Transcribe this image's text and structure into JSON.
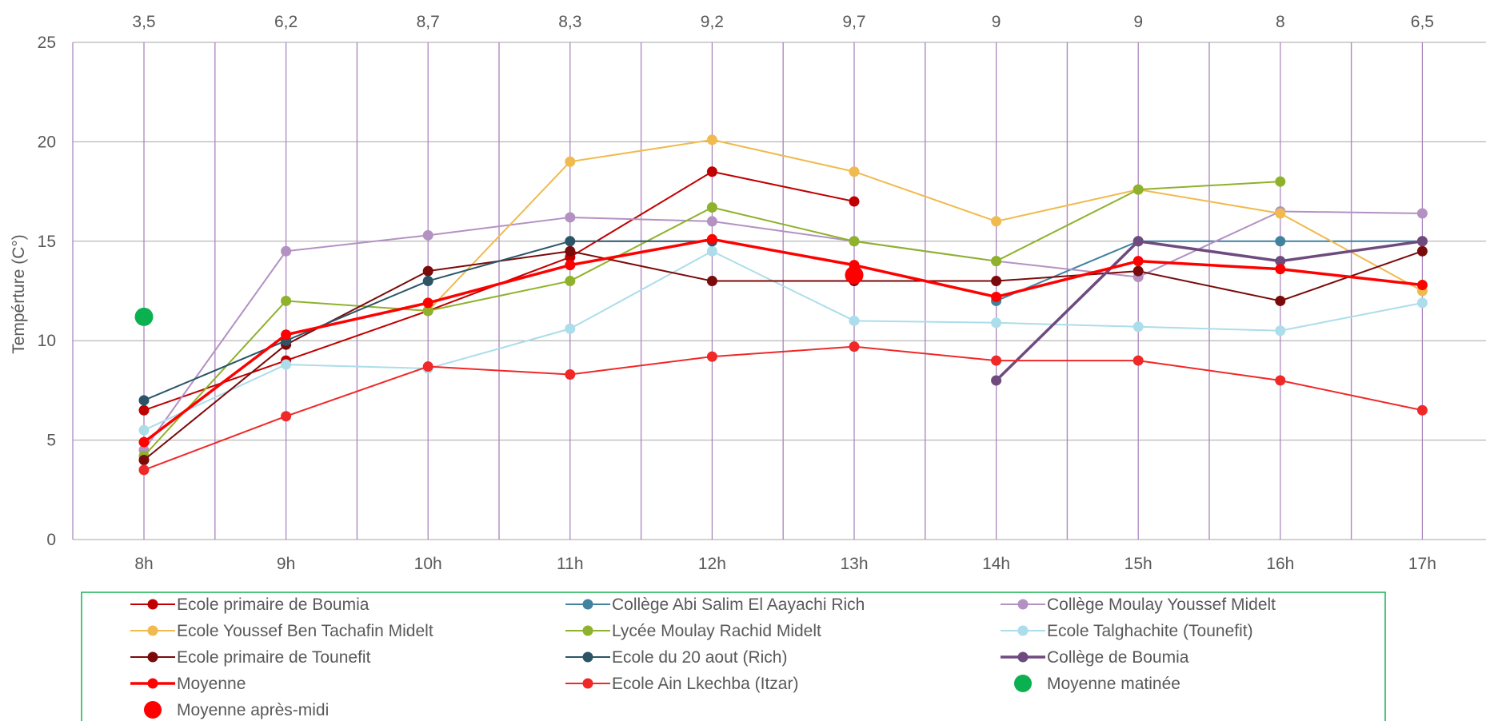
{
  "chart_data": {
    "type": "line",
    "title": "",
    "xlabel": "",
    "ylabel": "Tempérture (C°)",
    "ylim": [
      0,
      25
    ],
    "yticks": [
      "0",
      "5",
      "10",
      "15",
      "20",
      "25"
    ],
    "categories": [
      "8h",
      "9h",
      "10h",
      "11h",
      "12h",
      "13h",
      "14h",
      "15h",
      "16h",
      "17h"
    ],
    "secondary_x_labels": [
      "3,5",
      "6,2",
      "8,7",
      "8,3",
      "9,2",
      "9,7",
      "9",
      "9",
      "8",
      "6,5"
    ],
    "grid": true,
    "legend_position": "bottom",
    "series": [
      {
        "name": "Ecole primaire de Boumia",
        "color": "#C00000",
        "width": 2,
        "marker": 6.5,
        "values": [
          6.5,
          9,
          11.5,
          14.2,
          18.5,
          17,
          null,
          null,
          null,
          null
        ]
      },
      {
        "name": "Collège Abi Salim El Aayachi Rich",
        "color": "#41829E",
        "width": 2,
        "marker": 6.5,
        "values": [
          null,
          null,
          null,
          null,
          null,
          null,
          12,
          15,
          15,
          15
        ]
      },
      {
        "name": "Collège Moulay Youssef Midelt",
        "color": "#B391C3",
        "width": 2,
        "marker": 6.5,
        "values": [
          4.5,
          14.5,
          15.3,
          16.2,
          16,
          15,
          14,
          13.2,
          16.5,
          16.4
        ]
      },
      {
        "name": "Ecole Youssef Ben Tachafin Midelt",
        "color": "#F0BA4E",
        "width": 2,
        "marker": 6.5,
        "values": [
          null,
          null,
          11.5,
          19,
          20.1,
          18.5,
          16,
          17.6,
          16.4,
          12.5
        ]
      },
      {
        "name": "Lycée Moulay Rachid Midelt",
        "color": "#8EB22B",
        "width": 2,
        "marker": 6.5,
        "values": [
          4.2,
          12,
          11.5,
          13,
          16.7,
          15,
          14,
          17.6,
          18,
          null
        ]
      },
      {
        "name": "Ecole Talghachite (Tounefit)",
        "color": "#ABDDEA",
        "width": 2,
        "marker": 6.5,
        "values": [
          5.5,
          8.8,
          8.6,
          10.6,
          14.5,
          11,
          10.9,
          10.7,
          10.5,
          11.9
        ]
      },
      {
        "name": "Ecole primaire de Tounefit",
        "color": "#7B0A0A",
        "width": 2,
        "marker": 6.5,
        "values": [
          4,
          9.8,
          13.5,
          14.5,
          13,
          13,
          13,
          13.5,
          12,
          14.5
        ]
      },
      {
        "name": "Ecole du 20 aout  (Rich)",
        "color": "#2B5567",
        "width": 2,
        "marker": 6.5,
        "values": [
          7,
          10,
          13,
          15,
          15,
          null,
          null,
          null,
          null,
          null
        ]
      },
      {
        "name": "Collège de Boumia",
        "color": "#6E4A7E",
        "width": 3.5,
        "marker": 6.5,
        "values": [
          null,
          null,
          null,
          null,
          null,
          null,
          8,
          15,
          14,
          15
        ]
      },
      {
        "name": "Moyenne",
        "color": "#FF0000",
        "width": 3.5,
        "marker": 6.5,
        "values": [
          4.9,
          10.3,
          11.9,
          13.8,
          15.1,
          13.8,
          12.2,
          14,
          13.6,
          12.8
        ]
      },
      {
        "name": "Ecole Ain Lkechba (Itzar)",
        "color": "#F02828",
        "width": 2,
        "marker": 6.5,
        "values": [
          3.5,
          6.2,
          8.7,
          8.3,
          9.2,
          9.7,
          9,
          9,
          8,
          6.5
        ]
      }
    ],
    "points": [
      {
        "name": "Moyenne matinée",
        "color": "#0BB150",
        "category": "8h",
        "value": 11.2
      },
      {
        "name": "Moyenne après-midi",
        "color": "#FF0000",
        "category": "13h",
        "value": 13.3
      }
    ],
    "legend": [
      {
        "label": "Ecole primaire de Boumia",
        "kind": "line",
        "color": "#C00000",
        "width": 2
      },
      {
        "label": "Collège Abi Salim El Aayachi Rich",
        "kind": "line",
        "color": "#41829E",
        "width": 2
      },
      {
        "label": "Collège Moulay Youssef Midelt",
        "kind": "line",
        "color": "#B391C3",
        "width": 2
      },
      {
        "label": "Ecole Youssef Ben Tachafin Midelt",
        "kind": "line",
        "color": "#F0BA4E",
        "width": 2
      },
      {
        "label": "Lycée Moulay Rachid Midelt",
        "kind": "line",
        "color": "#8EB22B",
        "width": 2
      },
      {
        "label": "Ecole Talghachite (Tounefit)",
        "kind": "line",
        "color": "#ABDDEA",
        "width": 2
      },
      {
        "label": "Ecole primaire de Tounefit",
        "kind": "line",
        "color": "#7B0A0A",
        "width": 2
      },
      {
        "label": "Ecole du 20 aout  (Rich)",
        "kind": "line",
        "color": "#2B5567",
        "width": 2
      },
      {
        "label": "Collège de Boumia",
        "kind": "line",
        "color": "#6E4A7E",
        "width": 3.5
      },
      {
        "label": "Moyenne",
        "kind": "line",
        "color": "#FF0000",
        "width": 3.5
      },
      {
        "label": "Ecole Ain Lkechba (Itzar)",
        "kind": "line",
        "color": "#F02828",
        "width": 2
      },
      {
        "label": "Moyenne matinée",
        "kind": "dot",
        "color": "#0BB150",
        "width": 0
      },
      {
        "label": "Moyenne après-midi",
        "kind": "dot",
        "color": "#FF0000",
        "width": 0
      }
    ],
    "colors": {
      "primary_grid": "#A5A5A5",
      "minor_grid": "#B089C2",
      "major_vertical_grid": "#A57EBA",
      "legend_border": "#17B04F",
      "text": "#595959"
    }
  }
}
